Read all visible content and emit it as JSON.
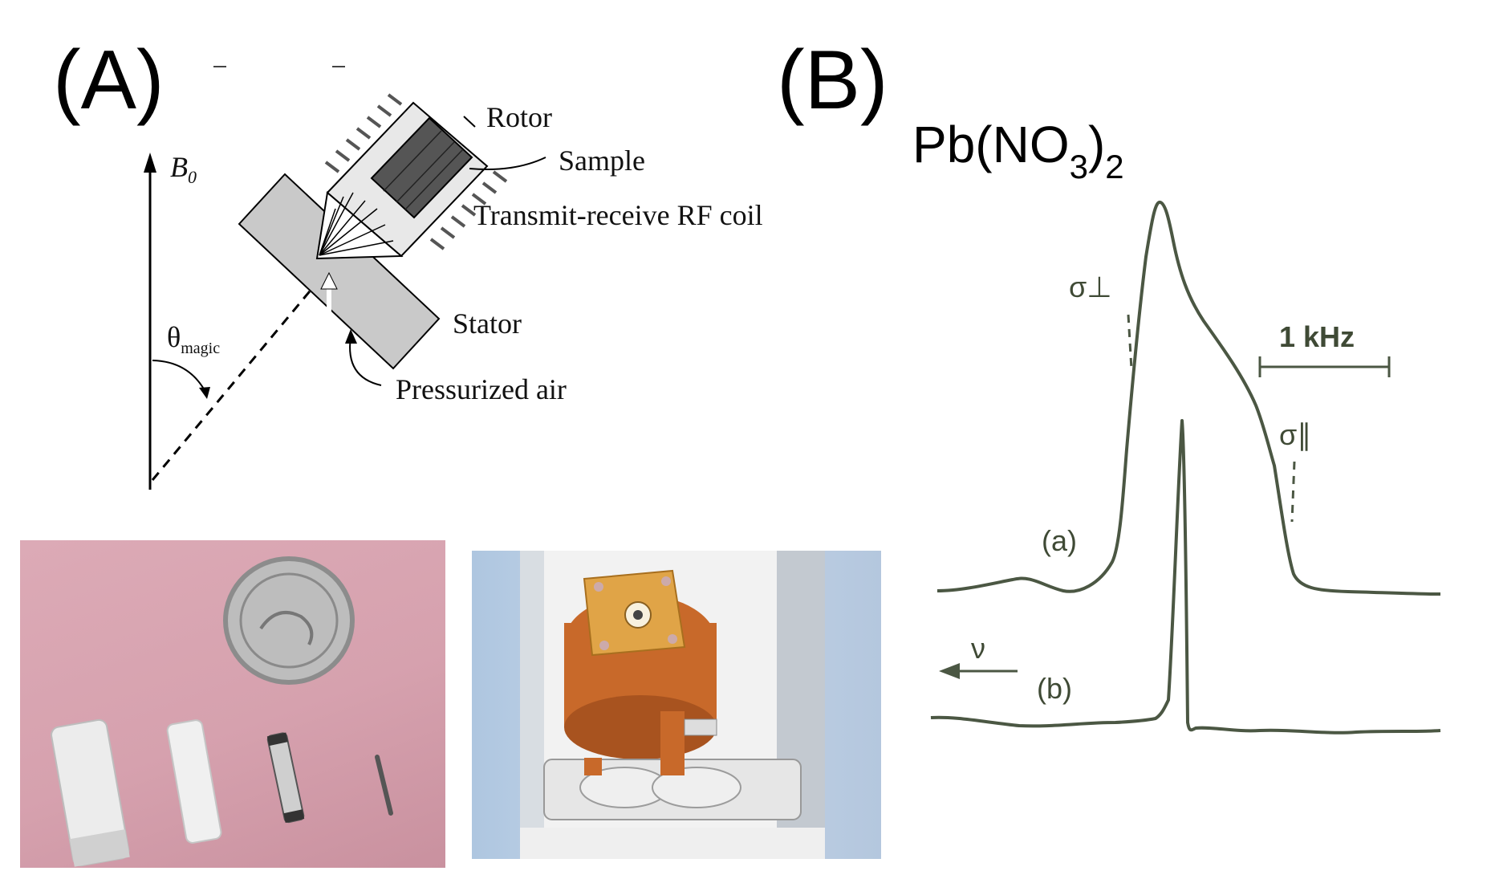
{
  "panel_a": {
    "label": "(A)",
    "field_label": "B",
    "field_sub": "0",
    "angle_label": "θ",
    "angle_sub": "magic",
    "parts": {
      "rotor": "Rotor",
      "sample": "Sample",
      "coil": "Transmit-receive RF coil",
      "stator": "Stator",
      "air": "Pressurized air"
    }
  },
  "panel_b": {
    "label": "(B)",
    "formula_main": "Pb(NO",
    "formula_sub1": "3",
    "formula_close": ")",
    "formula_sub2": "2",
    "sigma_perp": "σ⊥",
    "sigma_par": "σ∥",
    "scale_label": "1 kHz",
    "trace_a": "(a)",
    "trace_b": "(b)",
    "nu": "ν"
  },
  "colors": {
    "spectrum": "#4b5743",
    "photo_left_bg": "#d8a7b3",
    "photo_right_bg": "#b9cde3",
    "copper": "#c86a2c"
  }
}
